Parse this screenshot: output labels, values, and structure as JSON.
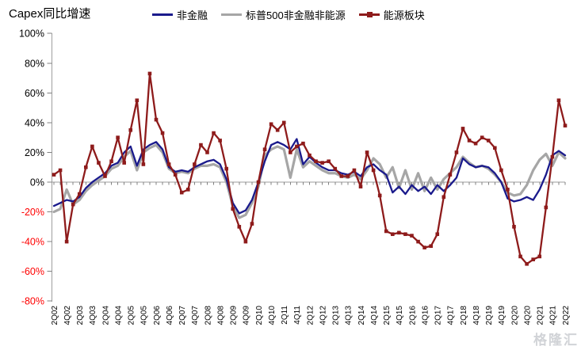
{
  "title": "Capex同比增速",
  "watermark": "格隆汇",
  "legend": [
    "非金融",
    "标普500非金融非能源",
    "能源板块"
  ],
  "colors": {
    "nonfinancial": "#1A1A8C",
    "sp500_ex_fin_energy": "#A6A6A6",
    "energy": "#8E1B1B",
    "negative_axis_label": "#FF0000",
    "positive_axis_label": "#000000",
    "axis_line": "#9E9E9E",
    "tick": "#808080"
  },
  "chart_data": {
    "type": "line",
    "title": "Capex同比增速",
    "xlabel": "",
    "ylabel": "",
    "ylim": [
      -80,
      100
    ],
    "ytick_labels": [
      "100%",
      "80%",
      "60%",
      "40%",
      "20%",
      "0%",
      "-20%",
      "-40%",
      "-60%",
      "-80%"
    ],
    "ytick_values": [
      100,
      80,
      60,
      40,
      20,
      0,
      -20,
      -40,
      -60,
      -80
    ],
    "grid": false,
    "legend_position": "top",
    "categories": [
      "2Q02",
      "4Q02",
      "2Q03",
      "4Q03",
      "2Q04",
      "4Q04",
      "2Q05",
      "4Q05",
      "2Q06",
      "4Q06",
      "2Q07",
      "4Q07",
      "2Q08",
      "4Q08",
      "2Q09",
      "4Q09",
      "2Q10",
      "4Q10",
      "2Q11",
      "4Q11",
      "2Q12",
      "4Q12",
      "2Q13",
      "4Q13",
      "2Q14",
      "4Q14",
      "2Q15",
      "4Q15",
      "2Q16",
      "4Q16",
      "2Q17",
      "4Q17",
      "2Q18",
      "4Q18",
      "2Q19",
      "4Q19",
      "2Q20",
      "4Q20",
      "2Q21",
      "4Q21",
      "2Q22"
    ],
    "points_per_label": 2,
    "x_unit": "quarter",
    "series": [
      {
        "name": "非金融",
        "color": "#1A1A8C",
        "marker": "none",
        "values": [
          -16,
          -14,
          -12,
          -13,
          -10,
          -4,
          0,
          3,
          6,
          11,
          13,
          20,
          24,
          11,
          22,
          25,
          27,
          22,
          10,
          7,
          8,
          7,
          10,
          12,
          14,
          15,
          12,
          2,
          -14,
          -21,
          -19,
          -12,
          0,
          14,
          25,
          27,
          25,
          22,
          29,
          12,
          17,
          13,
          10,
          8,
          8,
          6,
          5,
          7,
          4,
          10,
          12,
          8,
          5,
          -7,
          -3,
          -8,
          -2,
          -6,
          -3,
          -8,
          -2,
          -6,
          -2,
          3,
          16,
          12,
          10,
          11,
          10,
          6,
          0,
          -11,
          -13,
          -12,
          -10,
          -12,
          -5,
          5,
          18,
          21,
          18
        ]
      },
      {
        "name": "标普500非金融非能源",
        "color": "#A6A6A6",
        "marker": "none",
        "values": [
          -20,
          -18,
          -5,
          -15,
          -12,
          -6,
          -2,
          1,
          4,
          9,
          11,
          17,
          21,
          8,
          20,
          23,
          25,
          20,
          9,
          6,
          7,
          6,
          9,
          11,
          11,
          12,
          10,
          0,
          -16,
          -24,
          -22,
          -14,
          -3,
          18,
          22,
          24,
          22,
          3,
          22,
          10,
          14,
          11,
          8,
          6,
          6,
          4,
          3,
          5,
          2,
          8,
          16,
          12,
          3,
          10,
          -4,
          8,
          -5,
          6,
          -6,
          3,
          -5,
          2,
          6,
          10,
          17,
          13,
          10,
          11,
          9,
          5,
          0,
          -7,
          -9,
          -8,
          -2,
          8,
          15,
          19,
          11,
          20,
          16
        ]
      },
      {
        "name": "能源板块",
        "color": "#8E1B1B",
        "marker": "square",
        "values": [
          5,
          8,
          -40,
          -15,
          -8,
          10,
          24,
          13,
          4,
          14,
          30,
          13,
          35,
          55,
          12,
          73,
          42,
          33,
          12,
          5,
          -7,
          -5,
          12,
          25,
          20,
          33,
          28,
          9,
          -18,
          -30,
          -40,
          -28,
          0,
          22,
          39,
          35,
          40,
          20,
          24,
          26,
          18,
          14,
          13,
          14,
          9,
          4,
          4,
          8,
          -3,
          20,
          8,
          -9,
          -33,
          -35,
          -34,
          -35,
          -36,
          -40,
          -44,
          -43,
          -35,
          -10,
          5,
          20,
          36,
          28,
          26,
          30,
          28,
          23,
          8,
          -5,
          -30,
          -50,
          -55,
          -52,
          -50,
          -17,
          17,
          55,
          38
        ]
      }
    ]
  }
}
